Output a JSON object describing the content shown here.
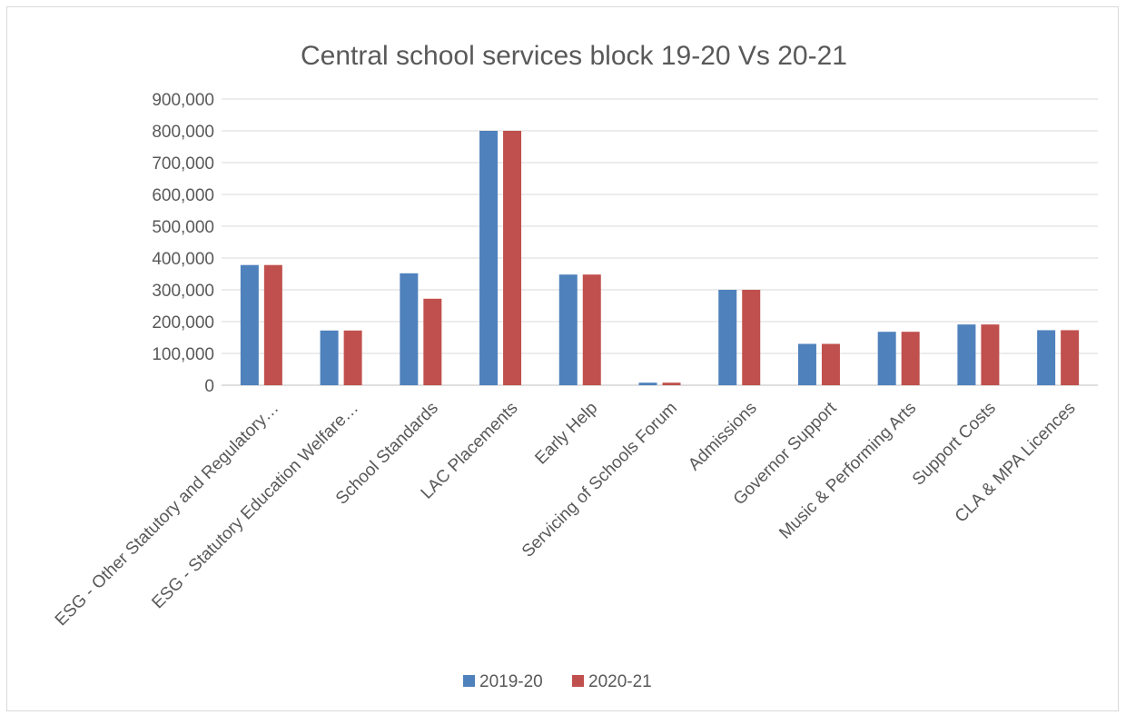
{
  "chart_data": {
    "type": "bar",
    "title": "Central school services block 19-20 Vs 20-21",
    "xlabel": "",
    "ylabel": "",
    "ylim": [
      0,
      900000
    ],
    "yticks": [
      0,
      100000,
      200000,
      300000,
      400000,
      500000,
      600000,
      700000,
      800000,
      900000
    ],
    "ytick_labels": [
      "0",
      "100,000",
      "200,000",
      "300,000",
      "400,000",
      "500,000",
      "600,000",
      "700,000",
      "800,000",
      "900,000"
    ],
    "grid": true,
    "legend_position": "bottom",
    "categories": [
      "ESG - Other Statutory and Regulatory…",
      "ESG - Statutory Education Welfare…",
      "School Standards",
      "LAC Placements",
      "Early Help",
      "Servicing of Schools Forum",
      "Admissions",
      "Governor Support",
      "Music & Performing Arts",
      "Support Costs",
      "CLA & MPA Licences"
    ],
    "series": [
      {
        "name": "2019-20",
        "color": "#4f81bd",
        "values": [
          378000,
          172000,
          352000,
          800000,
          348000,
          8000,
          300000,
          130000,
          168000,
          191000,
          173000
        ]
      },
      {
        "name": "2020-21",
        "color": "#c0504d",
        "values": [
          378000,
          172000,
          272000,
          800000,
          348000,
          8000,
          300000,
          130000,
          168000,
          191000,
          173000
        ]
      }
    ]
  }
}
